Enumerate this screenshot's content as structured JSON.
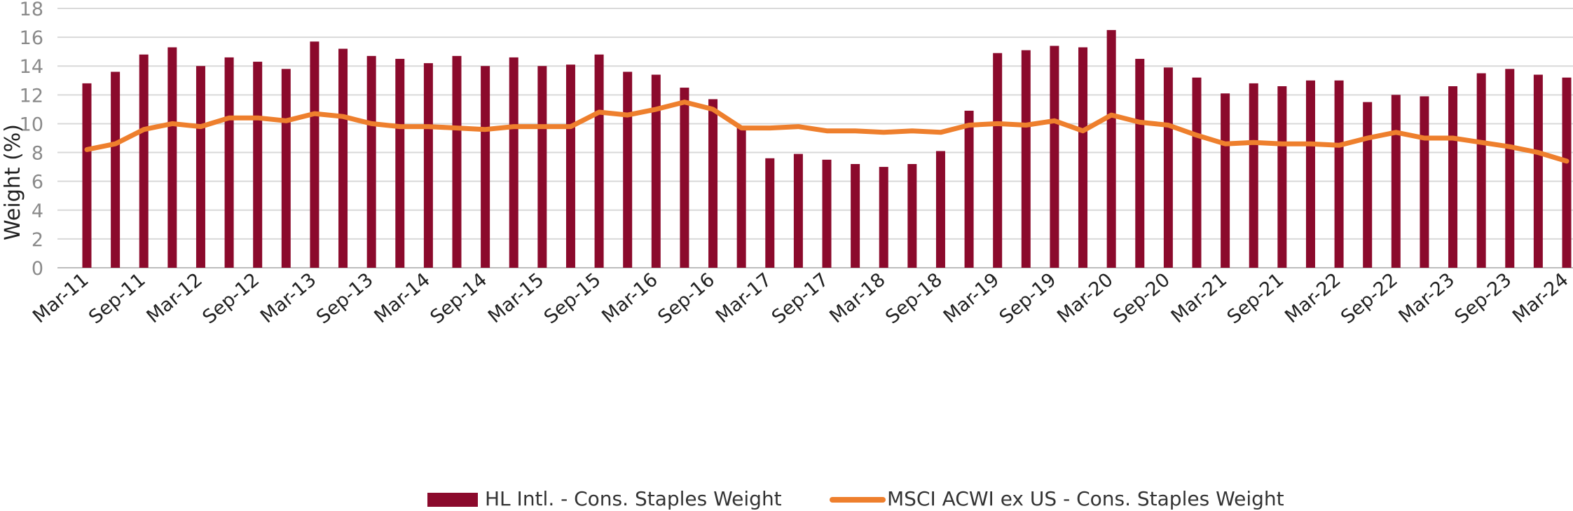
{
  "chart_data": {
    "type": "bar+line",
    "title": "",
    "xlabel": "",
    "ylabel": "Weight (%)",
    "ylim": [
      0,
      18
    ],
    "yticks": [
      0,
      2,
      4,
      6,
      8,
      10,
      12,
      14,
      16,
      18
    ],
    "grid": true,
    "legend_position": "bottom",
    "categories": [
      "Mar-11",
      "Jun-11",
      "Sep-11",
      "Dec-11",
      "Mar-12",
      "Jun-12",
      "Sep-12",
      "Dec-12",
      "Mar-13",
      "Jun-13",
      "Sep-13",
      "Dec-13",
      "Mar-14",
      "Jun-14",
      "Sep-14",
      "Dec-14",
      "Mar-15",
      "Jun-15",
      "Sep-15",
      "Dec-15",
      "Mar-16",
      "Jun-16",
      "Sep-16",
      "Dec-16",
      "Mar-17",
      "Jun-17",
      "Sep-17",
      "Dec-17",
      "Mar-18",
      "Jun-18",
      "Sep-18",
      "Dec-18",
      "Mar-19",
      "Jun-19",
      "Sep-19",
      "Dec-19",
      "Mar-20",
      "Jun-20",
      "Sep-20",
      "Dec-20",
      "Mar-21",
      "Jun-21",
      "Sep-21",
      "Dec-21",
      "Mar-22",
      "Jun-22",
      "Sep-22",
      "Dec-22",
      "Mar-23",
      "Jun-23",
      "Sep-23",
      "Dec-23",
      "Mar-24"
    ],
    "x_tick_labels": [
      "Mar-11",
      "Sep-11",
      "Mar-12",
      "Sep-12",
      "Mar-13",
      "Sep-13",
      "Mar-14",
      "Sep-14",
      "Mar-15",
      "Sep-15",
      "Mar-16",
      "Sep-16",
      "Mar-17",
      "Sep-17",
      "Mar-18",
      "Sep-18",
      "Mar-19",
      "Sep-19",
      "Mar-20",
      "Sep-20",
      "Mar-21",
      "Sep-21",
      "Mar-22",
      "Sep-22",
      "Mar-23",
      "Sep-23",
      "Mar-24"
    ],
    "series": [
      {
        "name": "HL Intl. -  Cons. Staples Weight",
        "type": "bar",
        "color": "#8B0A2C",
        "values": [
          12.8,
          13.6,
          14.8,
          15.3,
          14.0,
          14.6,
          14.3,
          13.8,
          15.7,
          15.2,
          14.7,
          14.5,
          14.2,
          14.7,
          14.0,
          14.6,
          14.0,
          14.1,
          14.8,
          13.6,
          13.4,
          12.5,
          11.7,
          9.8,
          7.6,
          7.9,
          7.5,
          7.2,
          7.0,
          7.2,
          8.1,
          10.9,
          14.9,
          15.1,
          15.4,
          15.3,
          16.5,
          14.5,
          13.9,
          13.2,
          12.1,
          12.8,
          12.6,
          13.0,
          13.0,
          11.5,
          12.0,
          11.9,
          12.6,
          13.5,
          13.8,
          13.4,
          13.2
        ]
      },
      {
        "name": "MSCI ACWI ex US - Cons. Staples Weight",
        "type": "line",
        "color": "#EE7F2D",
        "values": [
          8.2,
          8.6,
          9.6,
          10.0,
          9.8,
          10.4,
          10.4,
          10.2,
          10.7,
          10.5,
          10.0,
          9.8,
          9.8,
          9.7,
          9.6,
          9.8,
          9.8,
          9.8,
          10.8,
          10.6,
          11.0,
          11.5,
          11.0,
          9.7,
          9.7,
          9.8,
          9.5,
          9.5,
          9.4,
          9.5,
          9.4,
          9.9,
          10.0,
          9.9,
          10.2,
          9.5,
          10.6,
          10.1,
          9.9,
          9.2,
          8.6,
          8.7,
          8.6,
          8.6,
          8.5,
          9.0,
          9.4,
          9.0,
          9.0,
          8.7,
          8.4,
          8.0,
          7.4
        ]
      }
    ]
  }
}
